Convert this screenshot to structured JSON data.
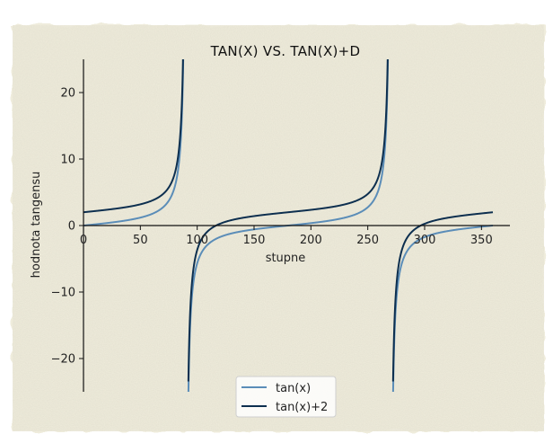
{
  "chart_data": {
    "type": "line",
    "title": "TAN(X) VS. TAN(X)+D",
    "xlabel": "stupne",
    "ylabel": "hodnota tangensu",
    "xlim": [
      0,
      375
    ],
    "ylim": [
      -25,
      25
    ],
    "x_ticks": [
      0,
      50,
      100,
      150,
      200,
      250,
      300,
      350
    ],
    "y_ticks": [
      -20,
      -10,
      0,
      10,
      20
    ],
    "x_tick_labels": [
      "0",
      "50",
      "100",
      "150",
      "200",
      "250",
      "300",
      "350"
    ],
    "y_tick_labels": [
      "−20",
      "−10",
      "0",
      "10",
      "20"
    ],
    "x_range": [
      0,
      360
    ],
    "asymptotes": [
      90,
      270
    ],
    "grid": false,
    "legend_position": "bottom-center",
    "series": [
      {
        "name": "tan(x)",
        "function": "tan(x)",
        "offset": 0,
        "color": "#5b8db8"
      },
      {
        "name": "tan(x)+2",
        "function": "tan(x)+2",
        "offset": 2,
        "color": "#0d2f4f"
      }
    ]
  },
  "colors": {
    "paper": "#efecdc",
    "axis": "#111111"
  }
}
